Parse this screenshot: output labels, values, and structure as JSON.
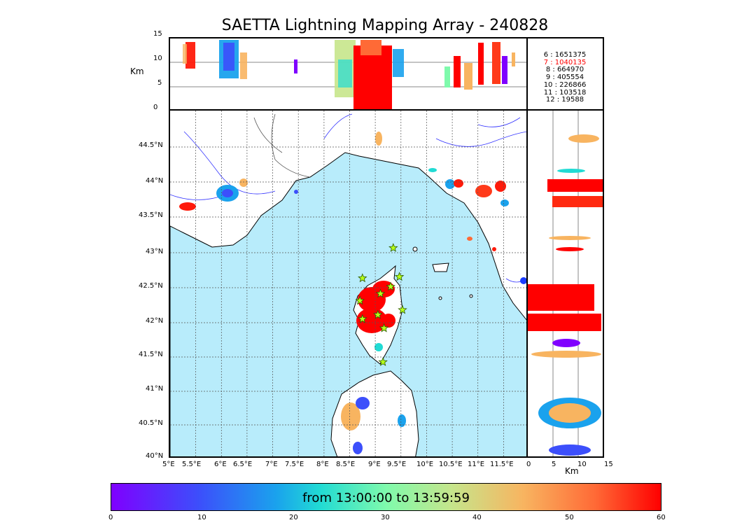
{
  "title": "SAETTA Lightning Mapping Array - 240828",
  "alt_panel": {
    "ylabel": "Km",
    "y_ticks": [
      "15",
      "10",
      "5",
      "0"
    ]
  },
  "side_panel": {
    "xlabel": "Km",
    "x_ticks": [
      "0",
      "5",
      "10",
      "15"
    ]
  },
  "map": {
    "lon_ticks": [
      "5°E",
      "5.5°E",
      "6°E",
      "6.5°E",
      "7°E",
      "7.5°E",
      "8°E",
      "8.5°E",
      "9°E",
      "9.5°E",
      "10°E",
      "10.5°E",
      "11°E",
      "11.5°E"
    ],
    "lat_ticks": [
      "44.5°N",
      "44°N",
      "43.5°N",
      "43°N",
      "42.5°N",
      "42°N",
      "41.5°N",
      "41°N",
      "40.5°N",
      "40°N"
    ],
    "lon_range": [
      5.0,
      12.0
    ],
    "lat_range": [
      40.0,
      44.95
    ],
    "sea_color": "#b8ecfb",
    "station_icon": "star-icon",
    "stations": [
      {
        "lon": 9.35,
        "lat": 43.0
      },
      {
        "lon": 8.75,
        "lat": 42.57
      },
      {
        "lon": 9.47,
        "lat": 42.59
      },
      {
        "lon": 9.1,
        "lat": 42.35
      },
      {
        "lon": 9.3,
        "lat": 42.45
      },
      {
        "lon": 8.7,
        "lat": 42.25
      },
      {
        "lon": 9.53,
        "lat": 42.12
      },
      {
        "lon": 9.05,
        "lat": 42.05
      },
      {
        "lon": 8.75,
        "lat": 41.99
      },
      {
        "lon": 9.17,
        "lat": 41.86
      },
      {
        "lon": 9.15,
        "lat": 41.38
      }
    ]
  },
  "legend": {
    "rows": [
      {
        "text": "6  :  1651375",
        "highlight": false
      },
      {
        "text": "7  :  1040135",
        "highlight": true
      },
      {
        "text": "8  :   664970",
        "highlight": false
      },
      {
        "text": "9  :   405554",
        "highlight": false
      },
      {
        "text": "10  :   226866",
        "highlight": false
      },
      {
        "text": "11  :   103518",
        "highlight": false
      },
      {
        "text": "12  :    19588",
        "highlight": false
      }
    ]
  },
  "colorbar": {
    "label": "from 13:00:00 to 13:59:59",
    "ticks": [
      "0",
      "10",
      "20",
      "30",
      "40",
      "50",
      "60"
    ],
    "range": [
      0,
      60
    ],
    "colors": [
      "#7f00ff",
      "#1aa2ed",
      "#7ffaac",
      "#f8b460",
      "#ff0000"
    ]
  }
}
